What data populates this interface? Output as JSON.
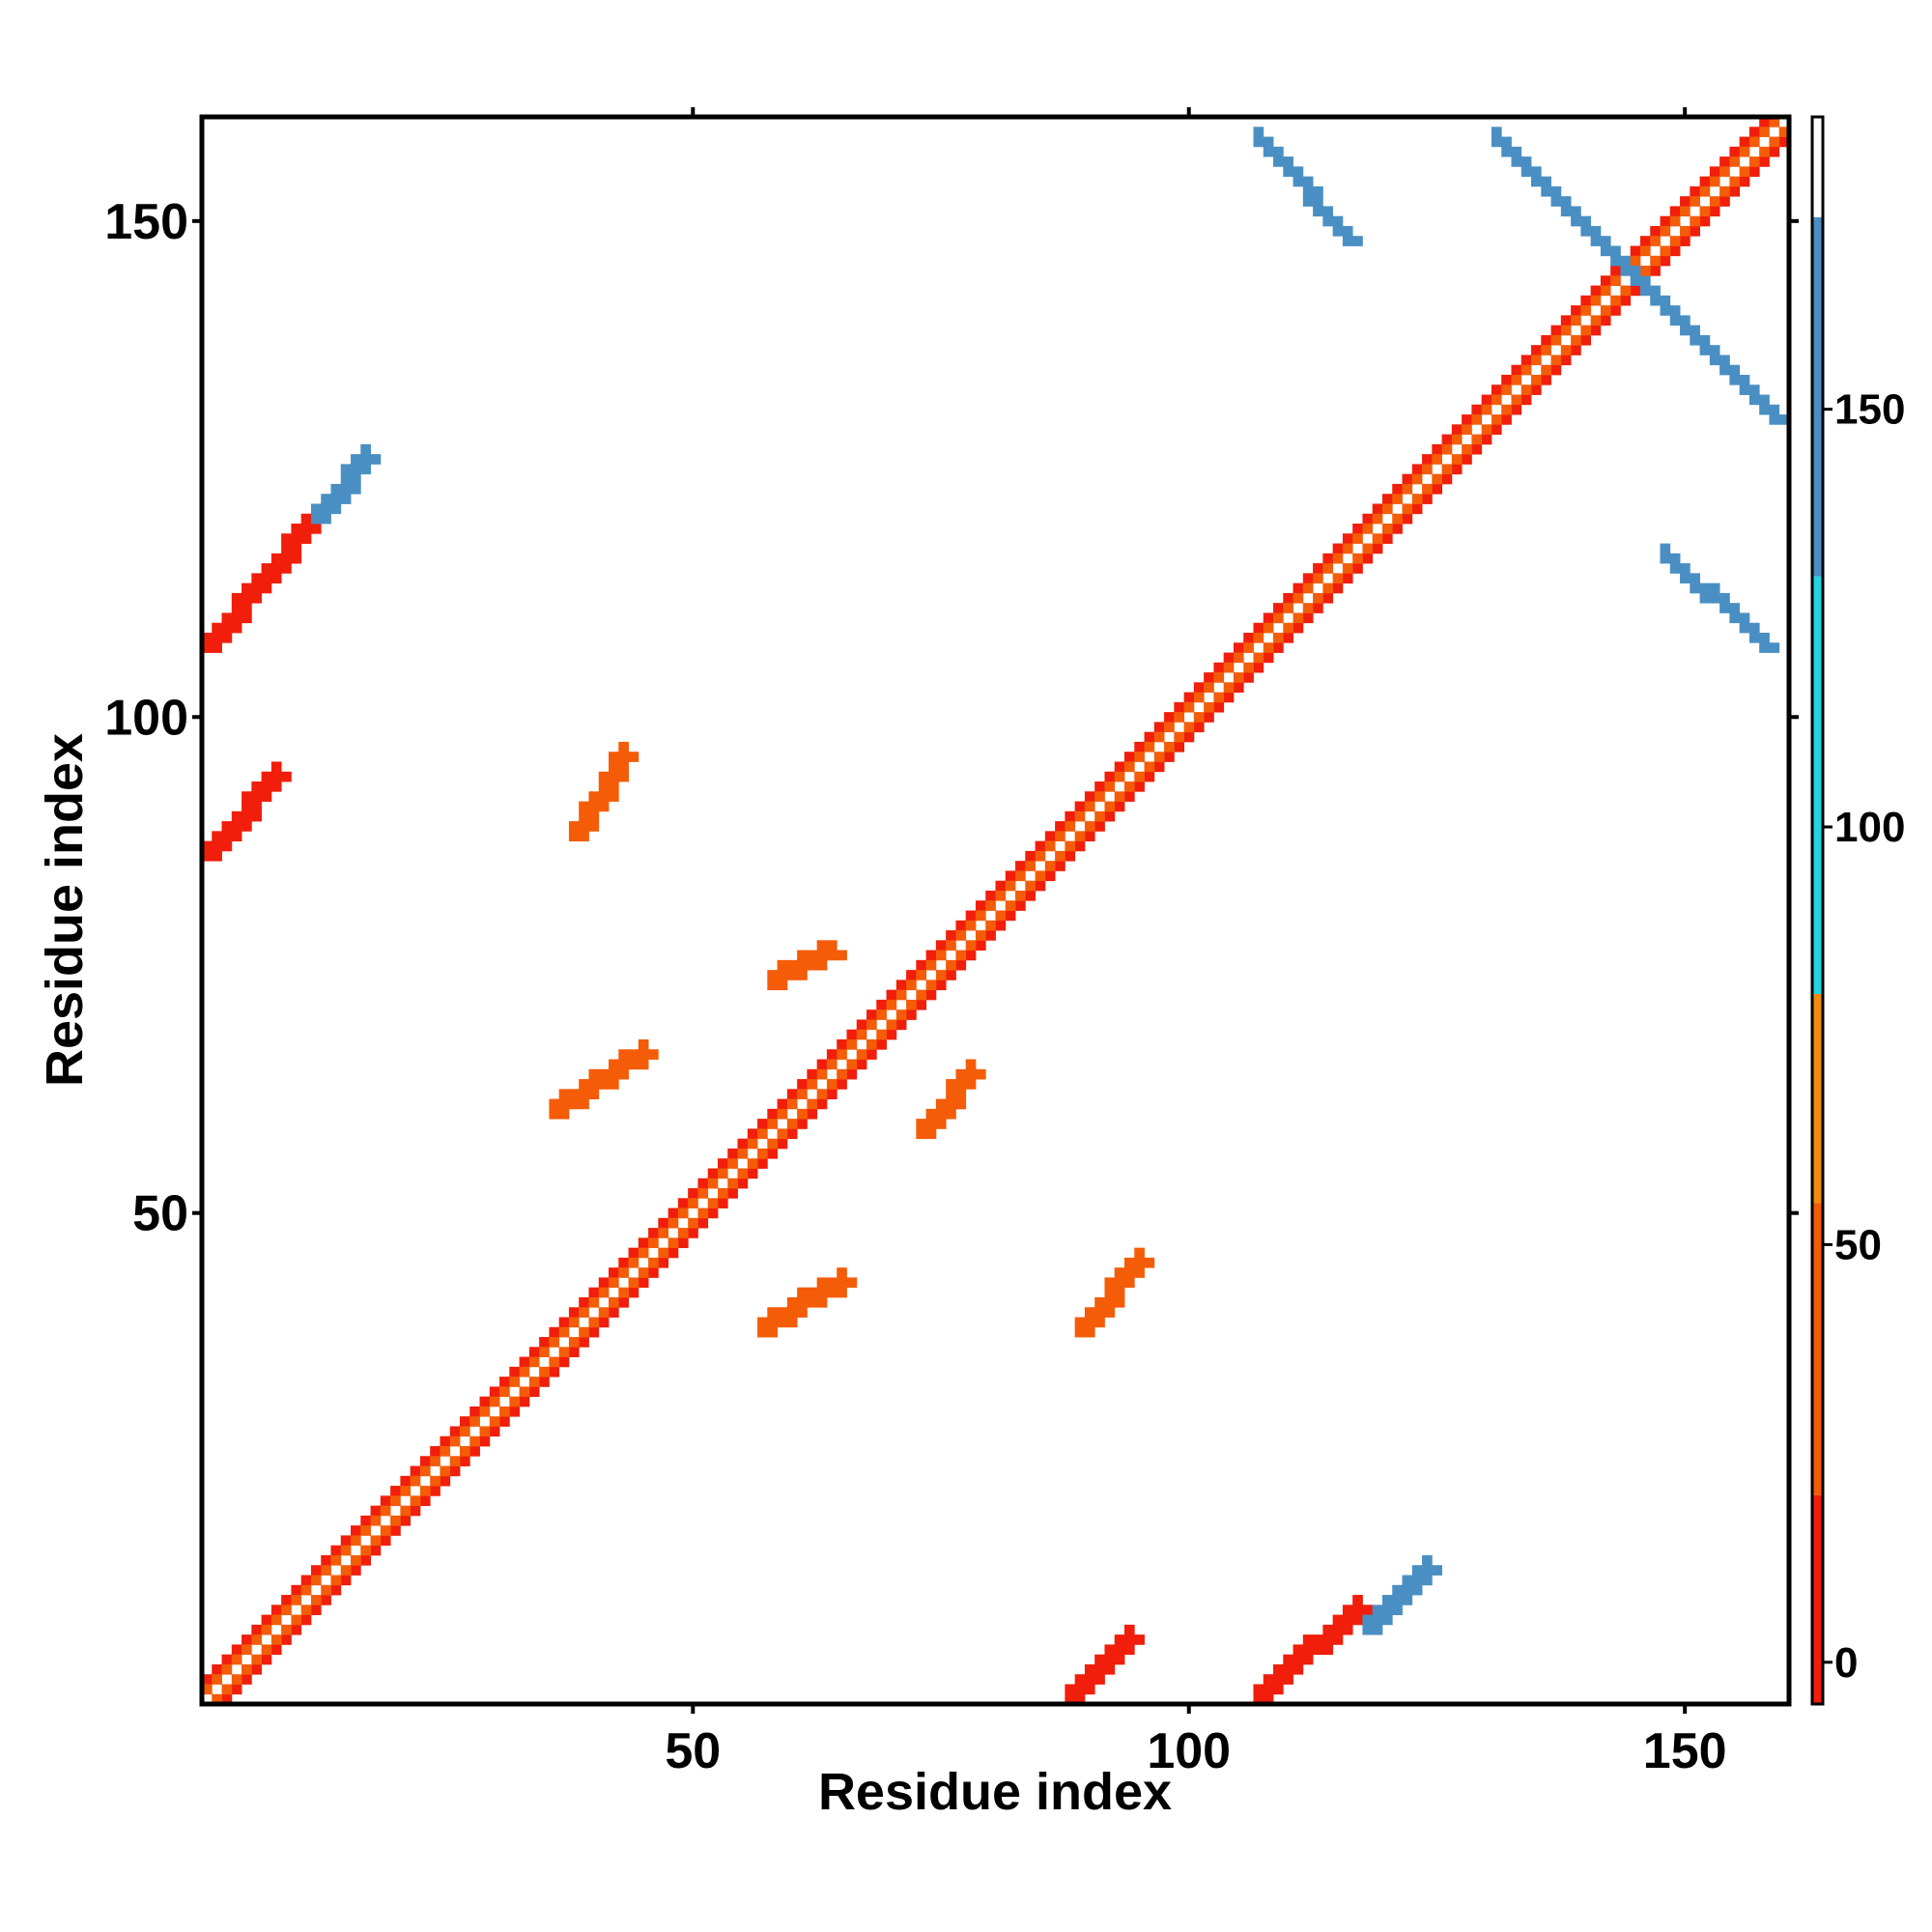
{
  "chart_data": {
    "type": "heatmap",
    "title": "",
    "xlabel": "Residue index",
    "ylabel": "Residue index",
    "xlim": [
      1,
      160
    ],
    "ylim": [
      1,
      160
    ],
    "x_ticks": [
      50,
      100,
      150
    ],
    "y_ticks": [
      50,
      100,
      150
    ],
    "colorbar": {
      "range": [
        -5,
        185
      ],
      "ticks": [
        0,
        50,
        100,
        150
      ],
      "colors": [
        {
          "from": -5,
          "to": 20,
          "color": "#f01e0a"
        },
        {
          "from": 20,
          "to": 55,
          "color": "#f45c08"
        },
        {
          "from": 55,
          "to": 80,
          "color": "#f38a0a"
        },
        {
          "from": 80,
          "to": 130,
          "color": "#22d4e4"
        },
        {
          "from": 130,
          "to": 173,
          "color": "#4a8fc3"
        },
        {
          "from": 173,
          "to": 185,
          "color": "#ffffff"
        }
      ]
    },
    "features": [
      {
        "kind": "diagonal",
        "from": 1,
        "to": 159,
        "value": 5
      },
      {
        "kind": "band",
        "orient": "parallel",
        "x": [
          1,
          8
        ],
        "y": [
          86,
          94
        ],
        "value": 10
      },
      {
        "kind": "band",
        "orient": "parallel",
        "x": [
          1,
          12
        ],
        "y": [
          107,
          120
        ],
        "value": 10
      },
      {
        "kind": "band",
        "orient": "parallel",
        "x": [
          12,
          17
        ],
        "y": [
          120,
          126
        ],
        "value": 150
      },
      {
        "kind": "band",
        "orient": "parallel",
        "x": [
          38,
          43
        ],
        "y": [
          88,
          96
        ],
        "value": 30
      },
      {
        "kind": "band",
        "orient": "parallel",
        "x": [
          36,
          45
        ],
        "y": [
          60,
          66
        ],
        "value": 30
      },
      {
        "kind": "band",
        "orient": "parallel",
        "x": [
          58,
          64
        ],
        "y": [
          73,
          76
        ],
        "value": 30
      },
      {
        "kind": "band",
        "orient": "parallel",
        "x": [
          57,
          65
        ],
        "y": [
          38,
          43
        ],
        "value": 30
      },
      {
        "kind": "band",
        "orient": "parallel",
        "x": [
          73,
          78
        ],
        "y": [
          58,
          64
        ],
        "value": 30
      },
      {
        "kind": "band",
        "orient": "parallel",
        "x": [
          88,
          94
        ],
        "y": [
          1,
          7
        ],
        "value": 10
      },
      {
        "kind": "band",
        "orient": "parallel",
        "x": [
          89,
          95
        ],
        "y": [
          38,
          45
        ],
        "value": 30
      },
      {
        "kind": "band",
        "orient": "parallel",
        "x": [
          107,
          117
        ],
        "y": [
          1,
          10
        ],
        "value": 10
      },
      {
        "kind": "band",
        "orient": "parallel",
        "x": [
          118,
          124
        ],
        "y": [
          8,
          14
        ],
        "value": 150
      },
      {
        "kind": "band",
        "orient": "anti",
        "x": [
          107,
          116
        ],
        "y": [
          148,
          158
        ],
        "value": 160
      },
      {
        "kind": "band",
        "orient": "anti",
        "x": [
          131,
          159
        ],
        "y": [
          130,
          158
        ],
        "value": 160
      },
      {
        "kind": "band",
        "orient": "anti",
        "x": [
          148,
          158
        ],
        "y": [
          107,
          116
        ],
        "value": 160
      }
    ]
  }
}
